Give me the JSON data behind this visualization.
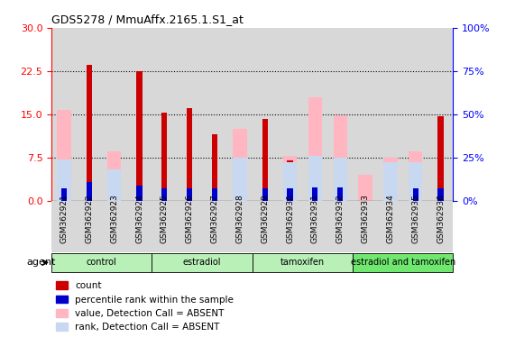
{
  "title": "GDS5278 / MmuAffx.2165.1.S1_at",
  "samples": [
    "GSM362921",
    "GSM362922",
    "GSM362923",
    "GSM362924",
    "GSM362925",
    "GSM362926",
    "GSM362927",
    "GSM362928",
    "GSM362929",
    "GSM362930",
    "GSM362931",
    "GSM362932",
    "GSM362933",
    "GSM362934",
    "GSM362935",
    "GSM362936"
  ],
  "count_values": [
    6.9,
    23.5,
    0,
    22.5,
    15.2,
    16.0,
    11.5,
    0,
    14.2,
    7.0,
    0,
    0,
    0,
    0,
    0,
    14.7
  ],
  "rank_values": [
    7.0,
    11.0,
    0,
    8.5,
    7.0,
    7.0,
    7.0,
    0,
    7.0,
    7.0,
    7.5,
    7.5,
    0,
    0,
    7.0,
    7.0
  ],
  "pink_values": [
    15.8,
    0,
    8.5,
    0,
    0,
    0,
    0,
    12.5,
    0,
    7.8,
    18.0,
    14.8,
    4.5,
    7.5,
    8.5,
    0
  ],
  "light_blue_values": [
    24.0,
    0,
    18.0,
    0,
    0,
    0,
    0,
    25.0,
    0,
    22.0,
    26.0,
    25.0,
    0,
    22.0,
    22.0,
    0
  ],
  "groups": [
    {
      "label": "control",
      "start": 0,
      "end": 3,
      "color": "#b8f0b8"
    },
    {
      "label": "estradiol",
      "start": 4,
      "end": 7,
      "color": "#b8f0b8"
    },
    {
      "label": "tamoxifen",
      "start": 8,
      "end": 11,
      "color": "#b8f0b8"
    },
    {
      "label": "estradiol and tamoxifen",
      "start": 12,
      "end": 15,
      "color": "#70e870"
    }
  ],
  "ylim_left": [
    0,
    30
  ],
  "ylim_right": [
    0,
    100
  ],
  "yticks_left": [
    0,
    7.5,
    15,
    22.5,
    30
  ],
  "yticks_right": [
    0,
    25,
    50,
    75,
    100
  ],
  "colors": {
    "count": "#CC0000",
    "rank": "#0000CC",
    "pink": "#FFB6C1",
    "light_blue": "#C8D8F0",
    "bg_plot": "#D8D8D8"
  }
}
